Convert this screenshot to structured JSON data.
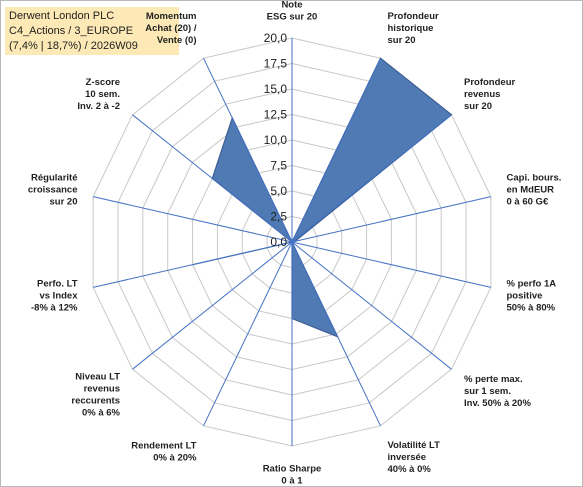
{
  "title_lines": [
    "Derwent London PLC",
    "C4_Actions / 3_EUROPE",
    "(7,4% | 18,7%) / 2026W09"
  ],
  "colors": {
    "fill": "#4f7ab3",
    "stroke": "#3c5f94",
    "spoke": "#4472c4",
    "grid": "#c8c8c8",
    "title_bg": "#fde9b5"
  },
  "chart_data": {
    "type": "radar",
    "range": [
      0,
      20
    ],
    "grid_step": 2.5,
    "tick_labels": [
      "0,0",
      "2,5",
      "5,0",
      "7,5",
      "10,0",
      "12,5",
      "15,0",
      "17,5",
      "20,0"
    ],
    "axes": [
      {
        "label": [
          "Note",
          "ESG sur 20"
        ],
        "value": 0
      },
      {
        "label": [
          "Profondeur",
          "historique",
          "sur 20"
        ],
        "value": 20
      },
      {
        "label": [
          "Profondeur",
          "revenus",
          "sur 20"
        ],
        "value": 20
      },
      {
        "label": [
          "Capi. bours.",
          "en MdEUR",
          "0 à 60 G€"
        ],
        "value": 0.3
      },
      {
        "label": [
          "% perfo 1A",
          "positive",
          "50% à 80%"
        ],
        "value": 0
      },
      {
        "label": [
          "% perte max.",
          "sur 1 sem.",
          "Inv. 50% à 20%"
        ],
        "value": 0
      },
      {
        "label": [
          "Volatilité LT",
          "inversée",
          "40% à 0%"
        ],
        "value": 10.3
      },
      {
        "label": [
          "Ratio Sharpe",
          "0 à 1"
        ],
        "value": 7.5
      },
      {
        "label": [
          "Rendement LT",
          "0% à 20%"
        ],
        "value": 0
      },
      {
        "label": [
          "Niveau LT",
          "revenus",
          "reccurents",
          "0% à 6%"
        ],
        "value": 0
      },
      {
        "label": [
          "Perfo. LT",
          "vs Index",
          "-8% à 12%"
        ],
        "value": 10
      },
      {
        "label": [
          "Régularité",
          "croissance",
          "sur 20"
        ],
        "value": 0
      },
      {
        "label": [
          "Z-score",
          "10 sem.",
          "Inv. 2 à -2"
        ],
        "value": 10
      },
      {
        "label": [
          "Momentum",
          "Achat (20) /",
          "Vente (0)"
        ],
        "value": 13.5
      }
    ]
  }
}
